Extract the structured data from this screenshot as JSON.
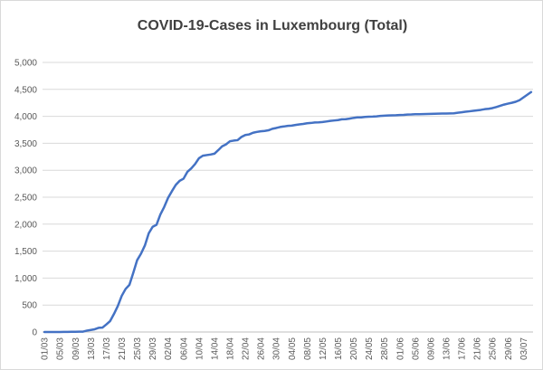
{
  "chart_data": {
    "type": "line",
    "title": "COVID-19-Cases in Luxembourg (Total)",
    "xlabel": "",
    "ylabel": "",
    "ylim": [
      0,
      5000
    ],
    "yticks": [
      0,
      500,
      1000,
      1500,
      2000,
      2500,
      3000,
      3500,
      4000,
      4500,
      5000
    ],
    "ytick_labels": [
      "0",
      "500",
      "1,000",
      "1,500",
      "2,000",
      "2,500",
      "3,000",
      "3,500",
      "4,000",
      "4,500",
      "5,000"
    ],
    "xtick_labels": [
      "01/03",
      "05/03",
      "09/03",
      "13/03",
      "17/03",
      "21/03",
      "25/03",
      "29/03",
      "02/04",
      "06/04",
      "10/04",
      "14/04",
      "18/04",
      "22/04",
      "26/04",
      "30/04",
      "04/05",
      "08/05",
      "12/05",
      "16/05",
      "20/05",
      "24/05",
      "28/05",
      "01/06",
      "05/06",
      "09/06",
      "13/06",
      "17/06",
      "21/06",
      "25/06",
      "29/06",
      "03/07"
    ],
    "grid": "horizontal",
    "legend": "none",
    "line_color": "#4472c4",
    "series": [
      {
        "x": [
          "01/03",
          "02/03",
          "03/03",
          "04/03",
          "05/03",
          "06/03",
          "07/03",
          "08/03",
          "09/03",
          "10/03",
          "11/03",
          "12/03",
          "13/03",
          "14/03",
          "15/03",
          "16/03",
          "17/03",
          "18/03",
          "19/03",
          "20/03",
          "21/03",
          "22/03",
          "23/03",
          "24/03",
          "25/03",
          "26/03",
          "27/03",
          "28/03",
          "29/03",
          "30/03",
          "31/03",
          "01/04",
          "02/04",
          "03/04",
          "04/04",
          "05/04",
          "06/04",
          "07/04",
          "08/04",
          "09/04",
          "10/04",
          "11/04",
          "12/04",
          "13/04",
          "14/04",
          "15/04",
          "16/04",
          "17/04",
          "18/04",
          "19/04",
          "20/04",
          "21/04",
          "22/04",
          "23/04",
          "24/04",
          "25/04",
          "26/04",
          "27/04",
          "28/04",
          "29/04",
          "30/04",
          "01/05",
          "02/05",
          "03/05",
          "04/05",
          "05/05",
          "06/05",
          "07/05",
          "08/05",
          "09/05",
          "10/05",
          "11/05",
          "12/05",
          "13/05",
          "14/05",
          "15/05",
          "16/05",
          "17/05",
          "18/05",
          "19/05",
          "20/05",
          "21/05",
          "22/05",
          "23/05",
          "24/05",
          "25/05",
          "26/05",
          "27/05",
          "28/05",
          "29/05",
          "30/05",
          "31/05",
          "01/06",
          "02/06",
          "03/06",
          "04/06",
          "05/06",
          "06/06",
          "07/06",
          "08/06",
          "09/06",
          "10/06",
          "11/06",
          "12/06",
          "13/06",
          "14/06",
          "15/06",
          "16/06",
          "17/06",
          "18/06",
          "19/06",
          "20/06",
          "21/06",
          "22/06",
          "23/06",
          "24/06",
          "25/06",
          "26/06",
          "27/06",
          "28/06",
          "29/06",
          "30/06",
          "01/07",
          "02/07",
          "03/07",
          "04/07",
          "05/07"
        ],
        "values": [
          1,
          1,
          1,
          1,
          1,
          2,
          3,
          4,
          5,
          7,
          7,
          26,
          38,
          51,
          77,
          81,
          140,
          203,
          335,
          484,
          670,
          798,
          875,
          1099,
          1333,
          1453,
          1605,
          1831,
          1950,
          1988,
          2178,
          2319,
          2487,
          2612,
          2729,
          2804,
          2843,
          2970,
          3034,
          3115,
          3223,
          3270,
          3281,
          3292,
          3307,
          3373,
          3444,
          3480,
          3537,
          3550,
          3558,
          3618,
          3654,
          3665,
          3695,
          3711,
          3723,
          3729,
          3741,
          3769,
          3784,
          3802,
          3812,
          3824,
          3828,
          3840,
          3851,
          3859,
          3871,
          3877,
          3886,
          3888,
          3894,
          3904,
          3915,
          3923,
          3930,
          3945,
          3947,
          3958,
          3971,
          3980,
          3981,
          3990,
          3993,
          3995,
          4000,
          4008,
          4012,
          4016,
          4018,
          4020,
          4024,
          4027,
          4034,
          4035,
          4039,
          4040,
          4042,
          4043,
          4045,
          4047,
          4049,
          4051,
          4052,
          4054,
          4056,
          4066,
          4075,
          4085,
          4093,
          4102,
          4111,
          4120,
          4133,
          4140,
          4153,
          4173,
          4195,
          4218,
          4235,
          4251,
          4270,
          4300,
          4350,
          4400,
          4450
        ]
      }
    ]
  }
}
